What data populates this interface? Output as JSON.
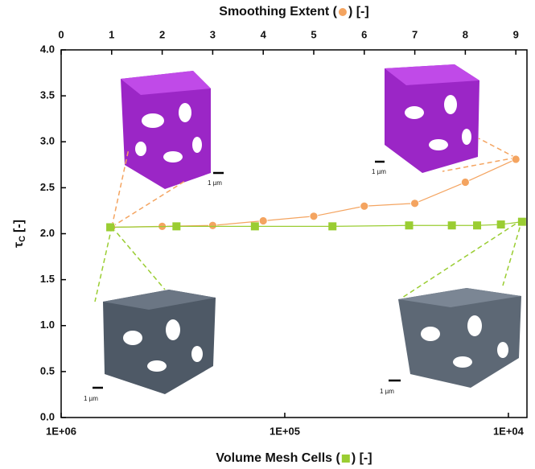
{
  "chart_data": {
    "type": "line",
    "x2label_parts": [
      "Smoothing Extent (",
      ") [-]"
    ],
    "xlabel_parts": [
      "Volume Mesh Cells (",
      ") [-]"
    ],
    "ylabel": {
      "symbol": "τ",
      "subscript": "C",
      "unit": "[-]"
    },
    "xlim": [
      1000000,
      8260
    ],
    "xscale": "log",
    "xticks": [
      {
        "value": 1000000,
        "label": "1E+06"
      },
      {
        "value": 100000,
        "label": "1E+05"
      },
      {
        "value": 10000,
        "label": "1E+04"
      }
    ],
    "x2lim": [
      0,
      9.22
    ],
    "x2ticks": [
      0,
      1,
      2,
      3,
      4,
      5,
      6,
      7,
      8,
      9
    ],
    "ylim": [
      0,
      4
    ],
    "yticks": [
      {
        "value": 0,
        "label": "0.0"
      },
      {
        "value": 0.5,
        "label": "0.5"
      },
      {
        "value": 1,
        "label": "1.0"
      },
      {
        "value": 1.5,
        "label": "1.5"
      },
      {
        "value": 2,
        "label": "2.0"
      },
      {
        "value": 2.5,
        "label": "2.5"
      },
      {
        "value": 3,
        "label": "3.0"
      },
      {
        "value": 3.5,
        "label": "3.5"
      },
      {
        "value": 4,
        "label": "4.0"
      }
    ],
    "series": [
      {
        "axis": "x2",
        "marker": "circle",
        "color": "#f4a460",
        "x": [
          1,
          2,
          3,
          4,
          5,
          6,
          7,
          8,
          9
        ],
        "values": [
          2.07,
          2.08,
          2.09,
          2.14,
          2.19,
          2.3,
          2.33,
          2.56,
          2.81
        ]
      },
      {
        "axis": "x",
        "marker": "square",
        "color": "#9acd32",
        "x": [
          603000,
          305000,
          136000,
          61200,
          27800,
          17900,
          13800,
          10800,
          8690
        ],
        "values": [
          2.07,
          2.08,
          2.08,
          2.08,
          2.09,
          2.09,
          2.09,
          2.1,
          2.13
        ]
      }
    ],
    "annotations": [
      "1 µm",
      "1 µm",
      "1 µm",
      "1 µm"
    ]
  }
}
